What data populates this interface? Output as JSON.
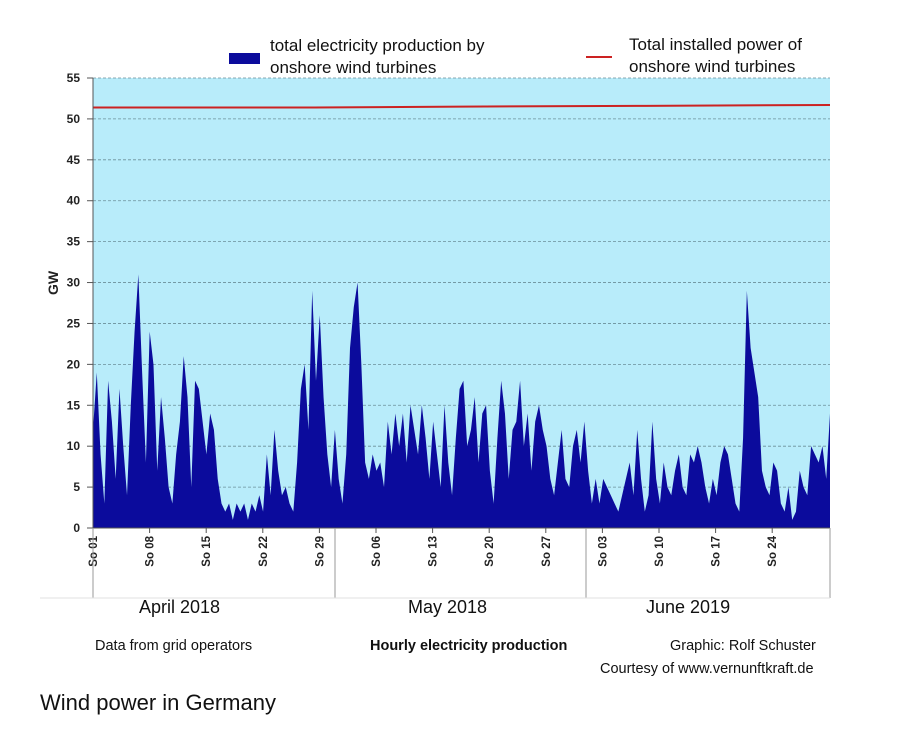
{
  "chart_data": {
    "type": "area",
    "ylabel": "GW",
    "ylim": [
      0,
      55
    ],
    "yticks": [
      0,
      5,
      10,
      15,
      20,
      25,
      30,
      35,
      40,
      45,
      50,
      55
    ],
    "grid": true,
    "xticks": [
      "So 01",
      "So 08",
      "So 15",
      "So 22",
      "So 29",
      "So 06",
      "So 13",
      "So 20",
      "So 27",
      "So 03",
      "So 10",
      "So 17",
      "So 24"
    ],
    "months": [
      "April 2018",
      "May 2018",
      "June 2019"
    ],
    "series": [
      {
        "name": "total electricity production by onshore wind turbines",
        "kind": "area",
        "color": "#0b0b9c",
        "values": [
          12,
          19,
          9,
          3,
          18,
          13,
          6,
          17,
          10,
          4,
          15,
          24,
          31,
          19,
          8,
          24,
          20,
          7,
          16,
          11,
          5,
          3,
          9,
          13,
          21,
          16,
          5,
          18,
          17,
          13,
          9,
          14,
          12,
          6,
          3,
          2,
          3,
          1,
          3,
          2,
          3,
          1,
          3,
          2,
          4,
          2,
          9,
          4,
          12,
          7,
          4,
          5,
          3,
          2,
          8,
          17,
          20,
          12,
          29,
          18,
          26,
          16,
          9,
          5,
          12,
          6,
          3,
          9,
          22,
          27,
          30,
          20,
          8,
          6,
          9,
          7,
          8,
          5,
          13,
          9,
          14,
          10,
          14,
          8,
          15,
          12,
          9,
          15,
          11,
          6,
          13,
          9,
          5,
          15,
          8,
          4,
          11,
          17,
          18,
          10,
          12,
          16,
          8,
          14,
          15,
          7,
          3,
          11,
          18,
          14,
          6,
          12,
          13,
          18,
          10,
          14,
          7,
          13,
          15,
          12,
          10,
          6,
          4,
          8,
          12,
          6,
          5,
          10,
          12,
          8,
          13,
          7,
          3,
          6,
          3,
          6,
          5,
          4,
          3,
          2,
          4,
          6,
          8,
          4,
          12,
          6,
          2,
          4,
          13,
          6,
          3,
          8,
          5,
          4,
          7,
          9,
          5,
          4,
          9,
          8,
          10,
          8,
          5,
          3,
          6,
          4,
          8,
          10,
          9,
          6,
          3,
          2,
          11,
          29,
          22,
          19,
          16,
          7,
          5,
          4,
          8,
          7,
          3,
          2,
          5,
          1,
          2,
          7,
          5,
          4,
          10,
          9,
          8,
          10,
          6,
          14
        ]
      },
      {
        "name": "Total installed power of onshore wind turbines",
        "kind": "line",
        "color": "#cc2222",
        "x": [
          0,
          0.3,
          0.5,
          0.75,
          1
        ],
        "values": [
          51.4,
          51.4,
          51.5,
          51.6,
          51.7
        ]
      }
    ]
  },
  "legend": {
    "production_line1": "total electricity production by",
    "production_line2": "onshore wind turbines",
    "installed_line1": "Total installed power of",
    "installed_line2": "onshore wind turbines"
  },
  "footer": {
    "source": "Data from grid operators",
    "center": "Hourly electricity production",
    "credit": "Graphic: Rolf Schuster",
    "courtesy": "Courtesy of www.vernunftkraft.de"
  },
  "caption": "Wind power in Germany"
}
